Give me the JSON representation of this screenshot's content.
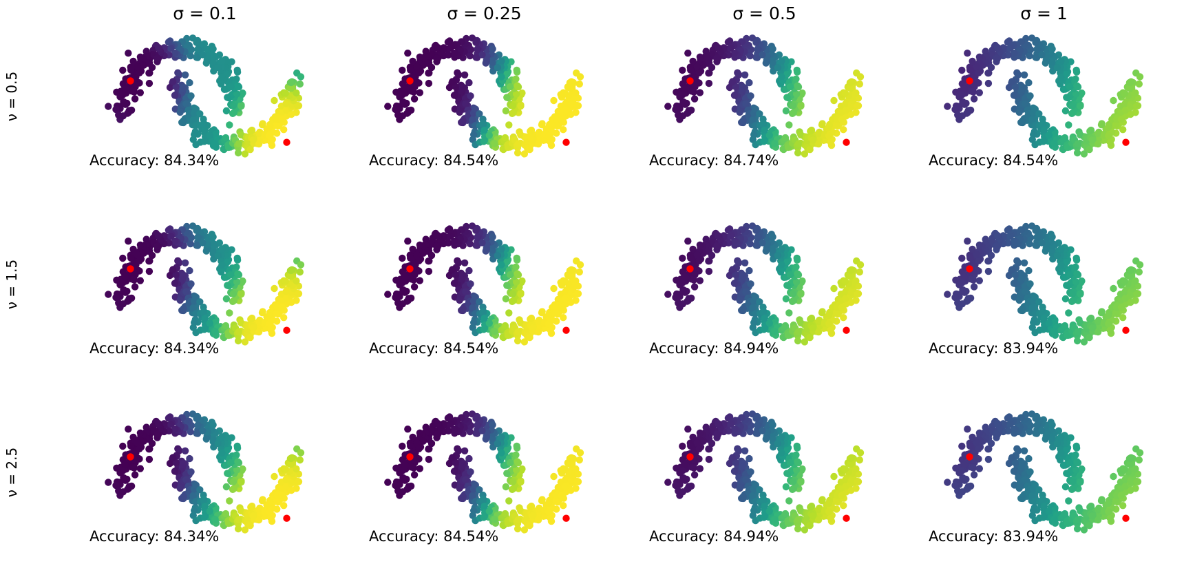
{
  "chart_data": {
    "type": "scatter",
    "layout": "grid",
    "rows": 3,
    "cols": 4,
    "column_titles": [
      "σ = 0.1",
      "σ = 0.25",
      "σ = 0.5",
      "σ = 1"
    ],
    "row_labels": [
      "ν = 0.5",
      "ν = 1.5",
      "ν = 2.5"
    ],
    "accuracy_labels": [
      [
        "Accuracy: 84.34%",
        "Accuracy: 84.54%",
        "Accuracy: 84.74%",
        "Accuracy: 84.54%"
      ],
      [
        "Accuracy: 84.34%",
        "Accuracy: 84.54%",
        "Accuracy: 84.94%",
        "Accuracy: 83.94%"
      ],
      [
        "Accuracy: 84.34%",
        "Accuracy: 84.54%",
        "Accuracy: 84.94%",
        "Accuracy: 83.94%"
      ]
    ],
    "dataset": "two moons",
    "colormap": "viridis",
    "labeled_point_color": "#ff0000",
    "labeled_points": [
      [
        -0.87,
        0.48
      ],
      [
        1.87,
        -0.47
      ]
    ],
    "axes_visible": false
  }
}
